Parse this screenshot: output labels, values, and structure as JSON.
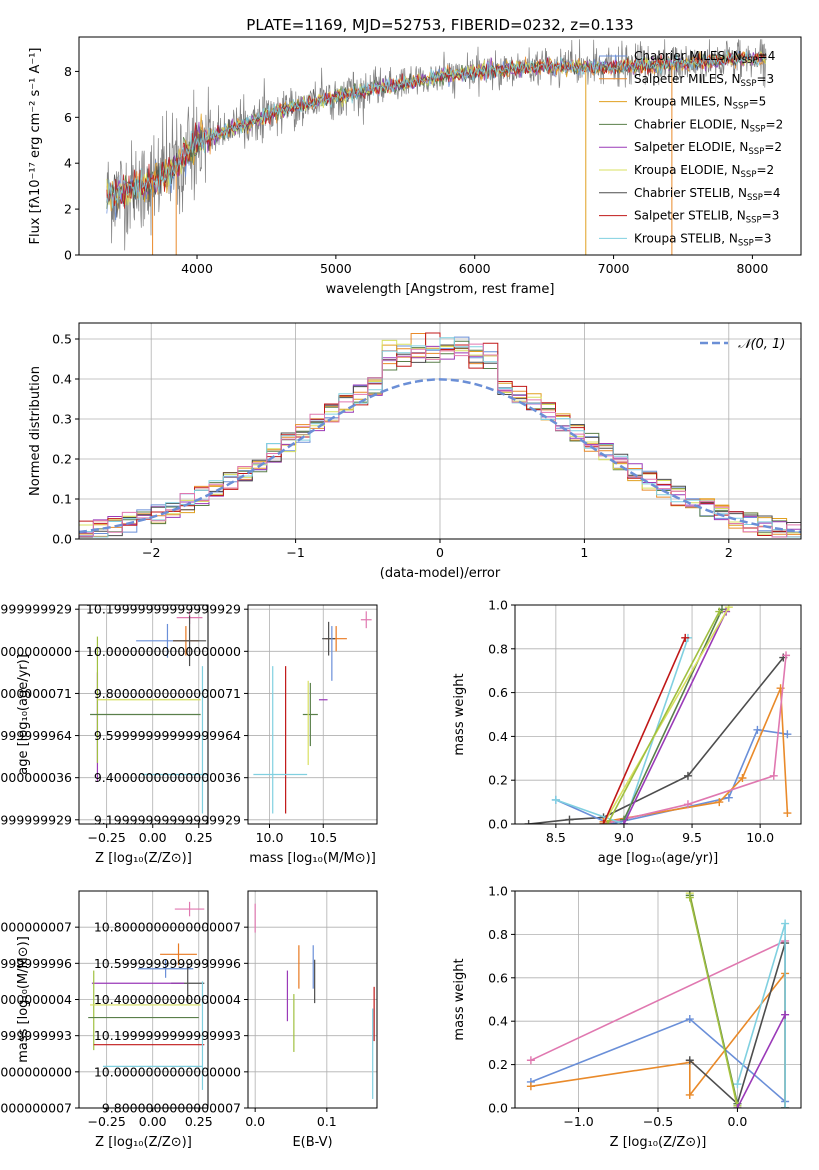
{
  "figure": {
    "title": "PLATE=1169, MJD=52753, FIBERID=0232, z=0.133"
  },
  "colors": {
    "chabrier_miles": "#6a8fd8",
    "salpeter_miles": "#e98a2a",
    "kroupa_miles": "#e0a020",
    "chabrier_elodie": "#5a7f4a",
    "salpeter_elodie": "#9a3ab8",
    "kroupa_elodie": "#d8e060",
    "chabrier_stelib": "#4d4d4d",
    "salpeter_stelib": "#c01818",
    "kroupa_stelib": "#80d0e0",
    "pink": "#e078b0",
    "orange": "#e87820",
    "olive": "#a0c040",
    "data_gray": "#808080",
    "normal_curve": "#6b8fd6"
  },
  "chart_data": [
    {
      "type": "line",
      "panel": "spectrum",
      "xlabel": "wavelength [Angstrom, rest frame]",
      "ylabel": "Flux [fλ10⁻¹⁷ erg cm⁻² s⁻¹ A⁻¹]",
      "xlim": [
        3150,
        8350
      ],
      "ylim": [
        0,
        9.5
      ],
      "xticks": [
        4000,
        5000,
        6000,
        7000,
        8000
      ],
      "yticks": [
        0,
        2,
        4,
        6,
        8
      ],
      "grid": false,
      "legend_position": "right",
      "legend": [
        {
          "label": "Chabrier MILES, N",
          "sub": "SSP",
          "suffix": "=4",
          "color_key": "chabrier_miles"
        },
        {
          "label": "Salpeter MILES, N",
          "sub": "SSP",
          "suffix": "=3",
          "color_key": "salpeter_miles"
        },
        {
          "label": "Kroupa MILES, N",
          "sub": "SSP",
          "suffix": "=5",
          "color_key": "kroupa_miles"
        },
        {
          "label": "Chabrier ELODIE, N",
          "sub": "SSP",
          "suffix": "=2",
          "color_key": "chabrier_elodie"
        },
        {
          "label": "Salpeter ELODIE, N",
          "sub": "SSP",
          "suffix": "=2",
          "color_key": "salpeter_elodie"
        },
        {
          "label": "Kroupa ELODIE, N",
          "sub": "SSP",
          "suffix": "=2",
          "color_key": "kroupa_elodie"
        },
        {
          "label": "Chabrier STELIB, N",
          "sub": "SSP",
          "suffix": "=4",
          "color_key": "chabrier_stelib"
        },
        {
          "label": "Salpeter STELIB, N",
          "sub": "SSP",
          "suffix": "=3",
          "color_key": "salpeter_stelib"
        },
        {
          "label": "Kroupa STELIB, N",
          "sub": "SSP",
          "suffix": "=3",
          "color_key": "kroupa_stelib"
        }
      ],
      "model_trend": {
        "x": [
          3350,
          3600,
          3800,
          4000,
          4300,
          4600,
          5000,
          5400,
          5800,
          6200,
          6600,
          7000,
          7400,
          7800,
          8100
        ],
        "y": [
          2.6,
          3.0,
          3.6,
          4.9,
          5.6,
          6.3,
          6.9,
          7.4,
          7.8,
          8.1,
          8.2,
          8.2,
          8.3,
          8.5,
          8.6
        ]
      }
    },
    {
      "type": "line",
      "panel": "residual_histogram",
      "xlabel": "(data-model)/error",
      "ylabel": "Normed distribution",
      "xlim": [
        -2.5,
        2.5
      ],
      "ylim": [
        0,
        0.54
      ],
      "xticks": [
        -2,
        -1,
        0,
        1,
        2
      ],
      "yticks": [
        0.0,
        0.1,
        0.2,
        0.3,
        0.4,
        0.5
      ],
      "grid": true,
      "legend_position": "top-right",
      "legend": [
        {
          "label": "𝒩(0, 1)",
          "color_key": "normal_curve"
        }
      ],
      "normal": {
        "mean": 0,
        "sigma": 1
      }
    },
    {
      "type": "scatter",
      "panel": "age_vs_Z",
      "xlabel": "Z [log₁₀(Z/Z⊙)]",
      "ylabel": "age  [log₁₀(age/yr)]",
      "xlim": [
        -0.4,
        0.3
      ],
      "ylim": [
        9.18,
        10.22
      ],
      "xticks": [
        -0.25,
        0.0,
        0.25
      ],
      "yticks": [
        9.2,
        9.4,
        9.6,
        9.8,
        10.0,
        10.2
      ],
      "points": [
        {
          "x": 0.2,
          "y": 10.16,
          "xerr": 0.07,
          "yerr": 0.03,
          "color_key": "pink"
        },
        {
          "x": 0.08,
          "y": 10.05,
          "xerr": 0.17,
          "yerr": 0.08,
          "color_key": "chabrier_miles"
        },
        {
          "x": 0.18,
          "y": 10.05,
          "xerr": 0.07,
          "yerr": 0.07,
          "color_key": "orange"
        },
        {
          "x": 0.2,
          "y": 10.05,
          "xerr": 0.09,
          "yerr": 0.12,
          "color_key": "chabrier_stelib"
        },
        {
          "x": -0.3,
          "y": 9.64,
          "xerr": 0.0,
          "yerr": 0.26,
          "color_key": "salpeter_elodie"
        },
        {
          "x": -0.3,
          "y": 9.77,
          "xerr": 0.0,
          "yerr": 0.3,
          "color_key": "olive"
        },
        {
          "x": -0.02,
          "y": 9.77,
          "xerr": 0.28,
          "yerr": 0.0,
          "color_key": "kroupa_elodie"
        },
        {
          "x": -0.04,
          "y": 9.7,
          "xerr": 0.3,
          "yerr": 0.0,
          "color_key": "chabrier_elodie"
        },
        {
          "x": 0.27,
          "y": 9.58,
          "xerr": 0.0,
          "yerr": 0.35,
          "color_key": "kroupa_stelib"
        },
        {
          "x": 0.12,
          "y": 9.415,
          "xerr": 0.18,
          "yerr": 0.0,
          "color_key": "kroupa_stelib"
        }
      ]
    },
    {
      "type": "scatter",
      "panel": "age_vs_mass",
      "xlabel": "mass [log₁₀(M/M⊙)]",
      "ylabel": "",
      "xlim": [
        9.8,
        11.0
      ],
      "ylim": [
        9.18,
        10.22
      ],
      "xticks": [
        10.0,
        10.5
      ],
      "yticks": [
        9.2,
        9.4,
        9.6,
        9.8,
        10.0,
        10.2
      ],
      "points": [
        {
          "x": 10.9,
          "y": 10.15,
          "xerr": 0.05,
          "yerr": 0.04,
          "color_key": "pink"
        },
        {
          "x": 10.62,
          "y": 10.06,
          "xerr": 0.1,
          "yerr": 0.06,
          "color_key": "orange"
        },
        {
          "x": 10.55,
          "y": 10.06,
          "xerr": 0.06,
          "yerr": 0.08,
          "color_key": "chabrier_stelib"
        },
        {
          "x": 10.58,
          "y": 9.99,
          "xerr": 0.0,
          "yerr": 0.13,
          "color_key": "chabrier_miles"
        },
        {
          "x": 10.5,
          "y": 9.77,
          "xerr": 0.04,
          "yerr": 0.0,
          "color_key": "salpeter_elodie"
        },
        {
          "x": 10.38,
          "y": 9.7,
          "xerr": 0.07,
          "yerr": 0.15,
          "color_key": "chabrier_elodie"
        },
        {
          "x": 10.36,
          "y": 9.66,
          "xerr": 0.0,
          "yerr": 0.2,
          "color_key": "kroupa_elodie"
        },
        {
          "x": 10.15,
          "y": 9.58,
          "xerr": 0.0,
          "yerr": 0.35,
          "color_key": "salpeter_stelib"
        },
        {
          "x": 10.03,
          "y": 9.58,
          "xerr": 0.0,
          "yerr": 0.35,
          "color_key": "kroupa_stelib"
        },
        {
          "x": 10.1,
          "y": 9.415,
          "xerr": 0.25,
          "yerr": 0.0,
          "color_key": "kroupa_stelib"
        }
      ]
    },
    {
      "type": "line",
      "panel": "mass_weight_vs_age",
      "xlabel": "age  [log₁₀(age/yr)]",
      "ylabel": "mass weight",
      "xlim": [
        8.2,
        10.3
      ],
      "ylim": [
        0,
        1.0
      ],
      "xticks": [
        8.5,
        9.0,
        9.5,
        10.0
      ],
      "yticks": [
        0.0,
        0.2,
        0.4,
        0.6,
        0.8,
        1.0
      ],
      "grid": true,
      "series": [
        {
          "color_key": "chabrier_stelib",
          "x": [
            8.3,
            8.6,
            8.85,
            9.47,
            10.17
          ],
          "y": [
            0.0,
            0.02,
            0.03,
            0.22,
            0.76
          ]
        },
        {
          "color_key": "chabrier_miles",
          "x": [
            8.5,
            8.9,
            9.77,
            9.98,
            10.2
          ],
          "y": [
            0.11,
            0.0,
            0.12,
            0.43,
            0.41
          ]
        },
        {
          "color_key": "salpeter_miles",
          "x": [
            8.85,
            9.7,
            9.87,
            10.15,
            10.2
          ],
          "y": [
            0.01,
            0.1,
            0.21,
            0.62,
            0.05
          ]
        },
        {
          "color_key": "pink",
          "x": [
            8.85,
            9.47,
            10.1,
            10.19
          ],
          "y": [
            0.0,
            0.09,
            0.22,
            0.77
          ]
        },
        {
          "color_key": "kroupa_stelib",
          "x": [
            8.5,
            9.0,
            9.47
          ],
          "y": [
            0.11,
            0.0,
            0.85
          ]
        },
        {
          "color_key": "chabrier_elodie",
          "x": [
            9.0,
            9.72
          ],
          "y": [
            0.02,
            0.98
          ]
        },
        {
          "color_key": "salpeter_elodie",
          "x": [
            9.0,
            9.75
          ],
          "y": [
            0.0,
            0.97
          ]
        },
        {
          "color_key": "kroupa_elodie",
          "x": [
            8.85,
            9.77
          ],
          "y": [
            0.0,
            0.99
          ]
        },
        {
          "color_key": "salpeter_stelib",
          "x": [
            8.85,
            9.45
          ],
          "y": [
            0.0,
            0.85
          ]
        },
        {
          "color_key": "olive",
          "x": [
            8.88,
            9.7
          ],
          "y": [
            0.0,
            0.97
          ]
        }
      ]
    },
    {
      "type": "scatter",
      "panel": "mass_vs_Z",
      "xlabel": "Z [log₁₀(Z/Z⊙)]",
      "ylabel": "mass [log₁₀(M/M⊙)]",
      "xlim": [
        -0.4,
        0.3
      ],
      "ylim": [
        9.8,
        11.0
      ],
      "xticks": [
        -0.25,
        0.0,
        0.25
      ],
      "yticks": [
        9.8,
        10.0,
        10.2,
        10.4,
        10.6,
        10.8
      ],
      "points": [
        {
          "x": 0.2,
          "y": 10.9,
          "xerr": 0.08,
          "yerr": 0.04,
          "color_key": "pink"
        },
        {
          "x": 0.14,
          "y": 10.65,
          "xerr": 0.1,
          "yerr": 0.06,
          "color_key": "orange"
        },
        {
          "x": 0.07,
          "y": 10.57,
          "xerr": 0.15,
          "yerr": 0.05,
          "color_key": "chabrier_miles"
        },
        {
          "x": 0.19,
          "y": 10.49,
          "xerr": 0.09,
          "yerr": 0.11,
          "color_key": "chabrier_stelib"
        },
        {
          "x": -0.08,
          "y": 10.49,
          "xerr": 0.25,
          "yerr": 0.0,
          "color_key": "salpeter_elodie"
        },
        {
          "x": -0.32,
          "y": 10.34,
          "xerr": 0.0,
          "yerr": 0.22,
          "color_key": "olive"
        },
        {
          "x": -0.04,
          "y": 10.37,
          "xerr": 0.3,
          "yerr": 0.0,
          "color_key": "kroupa_elodie"
        },
        {
          "x": -0.05,
          "y": 10.3,
          "xerr": 0.3,
          "yerr": 0.0,
          "color_key": "chabrier_elodie"
        },
        {
          "x": -0.02,
          "y": 10.15,
          "xerr": 0.3,
          "yerr": 0.0,
          "color_key": "salpeter_stelib"
        },
        {
          "x": 0.27,
          "y": 10.2,
          "xerr": 0.0,
          "yerr": 0.3,
          "color_key": "kroupa_stelib"
        },
        {
          "x": 0.0,
          "y": 10.03,
          "xerr": 0.27,
          "yerr": 0.0,
          "color_key": "kroupa_stelib"
        }
      ]
    },
    {
      "type": "scatter",
      "panel": "mass_vs_EBV",
      "xlabel": "E(B-V)",
      "ylabel": "",
      "xlim": [
        -0.01,
        0.17
      ],
      "ylim": [
        9.8,
        11.0
      ],
      "xticks": [
        0.0,
        0.1
      ],
      "yticks": [
        9.8,
        10.0,
        10.2,
        10.4,
        10.6,
        10.8
      ],
      "points": [
        {
          "x": 0.0,
          "y": 10.85,
          "xerr": 0.0,
          "yerr": 0.08,
          "color_key": "pink"
        },
        {
          "x": 0.061,
          "y": 10.58,
          "xerr": 0.0,
          "yerr": 0.12,
          "color_key": "orange"
        },
        {
          "x": 0.081,
          "y": 10.58,
          "xerr": 0.0,
          "yerr": 0.12,
          "color_key": "chabrier_miles"
        },
        {
          "x": 0.083,
          "y": 10.5,
          "xerr": 0.0,
          "yerr": 0.12,
          "color_key": "chabrier_stelib"
        },
        {
          "x": 0.045,
          "y": 10.42,
          "xerr": 0.0,
          "yerr": 0.14,
          "color_key": "salpeter_elodie"
        },
        {
          "x": 0.054,
          "y": 10.27,
          "xerr": 0.0,
          "yerr": 0.16,
          "color_key": "olive"
        },
        {
          "x": 0.166,
          "y": 10.32,
          "xerr": 0.0,
          "yerr": 0.15,
          "color_key": "salpeter_stelib"
        },
        {
          "x": 0.164,
          "y": 10.1,
          "xerr": 0.0,
          "yerr": 0.25,
          "color_key": "kroupa_stelib"
        }
      ]
    },
    {
      "type": "line",
      "panel": "mass_weight_vs_Z",
      "xlabel": "Z [log₁₀(Z/Z⊙)]",
      "ylabel": "mass weight",
      "xlim": [
        -1.4,
        0.4
      ],
      "ylim": [
        0,
        1.0
      ],
      "xticks": [
        -1.0,
        -0.5,
        0.0
      ],
      "yticks": [
        0.0,
        0.2,
        0.4,
        0.6,
        0.8,
        1.0
      ],
      "grid": true,
      "series": [
        {
          "color_key": "pink",
          "x": [
            -1.3,
            0.3
          ],
          "y": [
            0.22,
            0.77
          ]
        },
        {
          "color_key": "chabrier_miles",
          "x": [
            -1.3,
            -0.3,
            0.3
          ],
          "y": [
            0.12,
            0.41,
            0.03
          ]
        },
        {
          "color_key": "salpeter_miles",
          "x": [
            -1.3,
            -0.3,
            -0.3,
            0.3,
            0.3
          ],
          "y": [
            0.1,
            0.21,
            0.06,
            0.62,
            0.0
          ]
        },
        {
          "color_key": "chabrier_stelib",
          "x": [
            -0.3,
            0.0,
            0.3,
            0.3
          ],
          "y": [
            0.22,
            0.02,
            0.76,
            0.0
          ]
        },
        {
          "color_key": "kroupa_stelib",
          "x": [
            0.0,
            0.3,
            0.3
          ],
          "y": [
            0.11,
            0.85,
            0.0
          ]
        },
        {
          "color_key": "kroupa_elodie",
          "x": [
            -0.3,
            0.0
          ],
          "y": [
            0.99,
            0.0
          ]
        },
        {
          "color_key": "chabrier_elodie",
          "x": [
            -0.3,
            0.0
          ],
          "y": [
            0.98,
            0.02
          ]
        },
        {
          "color_key": "olive",
          "x": [
            -0.3,
            0.0
          ],
          "y": [
            0.97,
            0.01
          ]
        },
        {
          "color_key": "salpeter_elodie",
          "x": [
            0.0,
            0.3
          ],
          "y": [
            0.0,
            0.43
          ]
        }
      ]
    }
  ]
}
